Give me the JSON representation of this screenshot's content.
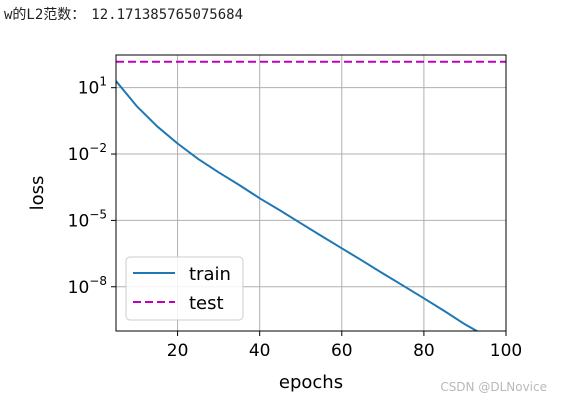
{
  "output": {
    "label": "w的L2范数：",
    "value": "12.171385765075684"
  },
  "chart_data": {
    "type": "line",
    "xlabel": "epochs",
    "ylabel": "loss",
    "yscale": "log",
    "xlim": [
      5,
      100
    ],
    "ylim": [
      1e-10,
      300
    ],
    "grid": true,
    "legend_position": "lower-left",
    "x_ticks": [
      {
        "value": 20,
        "label": "20"
      },
      {
        "value": 40,
        "label": "40"
      },
      {
        "value": 60,
        "label": "60"
      },
      {
        "value": 80,
        "label": "80"
      },
      {
        "value": 100,
        "label": "100"
      }
    ],
    "y_ticks": [
      {
        "value": 10,
        "base": "10",
        "exp": "1"
      },
      {
        "value": 0.01,
        "base": "10",
        "exp": "−2"
      },
      {
        "value": 1e-05,
        "base": "10",
        "exp": "−5"
      },
      {
        "value": 1e-08,
        "base": "10",
        "exp": "−8"
      }
    ],
    "series": [
      {
        "name": "train",
        "color": "#1f77b4",
        "style": "solid",
        "x": [
          5,
          10,
          15,
          20,
          25,
          30,
          35,
          40,
          45,
          50,
          55,
          60,
          65,
          70,
          75,
          80,
          85,
          90,
          95,
          100
        ],
        "y": [
          20,
          1.5,
          0.18,
          0.03,
          0.006,
          0.0015,
          0.0004,
          0.0001,
          2.8e-05,
          7.5e-06,
          2e-06,
          5.5e-07,
          1.5e-07,
          4e-08,
          1.1e-08,
          3e-09,
          8e-10,
          2e-10,
          6e-11,
          1.7e-11
        ]
      },
      {
        "name": "test",
        "color": "#bf00bf",
        "style": "dashed",
        "x": [
          5,
          100
        ],
        "y": [
          150,
          150
        ]
      }
    ]
  },
  "watermark": "CSDN @DLNovice"
}
